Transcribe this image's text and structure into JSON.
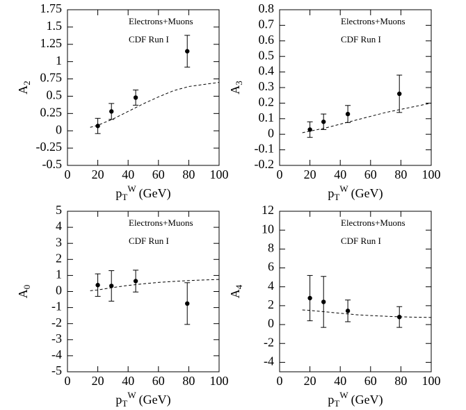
{
  "chart_data": [
    {
      "type": "scatter",
      "ylabel": "A",
      "ylabel_sub": "2",
      "xlabel": "p",
      "xlabel_sub": "T",
      "xlabel_sup": "W",
      "xlabel_unit": "(GeV)",
      "annotations": [
        "Electrons+Muons",
        "CDF Run I"
      ],
      "xlim": [
        0,
        100
      ],
      "xticks": [
        0,
        20,
        40,
        60,
        80,
        100
      ],
      "ylim": [
        -0.5,
        1.75
      ],
      "yticks": [
        -0.5,
        -0.25,
        0,
        0.25,
        0.5,
        0.75,
        1,
        1.25,
        1.5,
        1.75
      ],
      "points": {
        "x": [
          20,
          29,
          45,
          79
        ],
        "values": [
          0.07,
          0.28,
          0.48,
          1.15
        ],
        "errors": [
          0.11,
          0.115,
          0.11,
          0.23
        ]
      },
      "curve": {
        "x": [
          15,
          20,
          30,
          40,
          50,
          60,
          70,
          80,
          90,
          100
        ],
        "values": [
          0.05,
          0.08,
          0.17,
          0.28,
          0.39,
          0.49,
          0.58,
          0.64,
          0.67,
          0.7
        ],
        "dashed": true
      }
    },
    {
      "type": "scatter",
      "ylabel": "A",
      "ylabel_sub": "3",
      "xlabel": "p",
      "xlabel_sub": "T",
      "xlabel_sup": "W",
      "xlabel_unit": "(GeV)",
      "annotations": [
        "Electrons+Muons",
        "CDF Run I"
      ],
      "xlim": [
        0,
        100
      ],
      "xticks": [
        0,
        20,
        40,
        60,
        80,
        100
      ],
      "ylim": [
        -0.2,
        0.8
      ],
      "yticks": [
        -0.2,
        -0.1,
        0,
        0.1,
        0.2,
        0.3,
        0.4,
        0.5,
        0.6,
        0.7,
        0.8
      ],
      "points": {
        "x": [
          20,
          29,
          45,
          79
        ],
        "values": [
          0.03,
          0.08,
          0.13,
          0.26
        ],
        "errors": [
          0.05,
          0.05,
          0.055,
          0.12
        ]
      },
      "curve": {
        "x": [
          15,
          20,
          30,
          40,
          50,
          60,
          70,
          80,
          90,
          100
        ],
        "values": [
          0.01,
          0.02,
          0.04,
          0.065,
          0.09,
          0.115,
          0.14,
          0.16,
          0.18,
          0.2
        ],
        "dashed": true
      }
    },
    {
      "type": "scatter",
      "ylabel": "A",
      "ylabel_sub": "0",
      "xlabel": "p",
      "xlabel_sub": "T",
      "xlabel_sup": "W",
      "xlabel_unit": "(GeV)",
      "annotations": [
        "Electrons+Muons",
        "CDF Run I"
      ],
      "xlim": [
        0,
        100
      ],
      "xticks": [
        0,
        20,
        40,
        60,
        80,
        100
      ],
      "ylim": [
        -5,
        5
      ],
      "yticks": [
        -5,
        -4,
        -3,
        -2,
        -1,
        0,
        1,
        2,
        3,
        4,
        5
      ],
      "points": {
        "x": [
          20,
          29,
          45,
          79
        ],
        "values": [
          0.4,
          0.35,
          0.65,
          -0.75
        ],
        "errors": [
          0.7,
          0.95,
          0.68,
          1.3
        ]
      },
      "curve": {
        "x": [
          15,
          20,
          30,
          40,
          50,
          60,
          70,
          80,
          90,
          100
        ],
        "values": [
          0.05,
          0.1,
          0.25,
          0.38,
          0.48,
          0.57,
          0.63,
          0.68,
          0.72,
          0.75
        ],
        "dashed": true
      }
    },
    {
      "type": "scatter",
      "ylabel": "A",
      "ylabel_sub": "4",
      "xlabel": "p",
      "xlabel_sub": "T",
      "xlabel_sup": "W",
      "xlabel_unit": "(GeV)",
      "annotations": [
        "Electrons+Muons",
        "CDF Run I"
      ],
      "xlim": [
        0,
        100
      ],
      "xticks": [
        0,
        20,
        40,
        60,
        80,
        100
      ],
      "ylim": [
        -5,
        12
      ],
      "yticks": [
        -4,
        -2,
        0,
        2,
        4,
        6,
        8,
        10,
        12
      ],
      "points": {
        "x": [
          20,
          29,
          45,
          79
        ],
        "values": [
          2.8,
          2.4,
          1.45,
          0.8
        ],
        "errors": [
          2.4,
          2.7,
          1.15,
          1.1
        ]
      },
      "curve": {
        "x": [
          15,
          20,
          30,
          40,
          50,
          60,
          70,
          80,
          90,
          100
        ],
        "values": [
          1.55,
          1.5,
          1.35,
          1.2,
          1.05,
          0.95,
          0.88,
          0.82,
          0.78,
          0.75
        ],
        "dashed": true
      }
    }
  ]
}
